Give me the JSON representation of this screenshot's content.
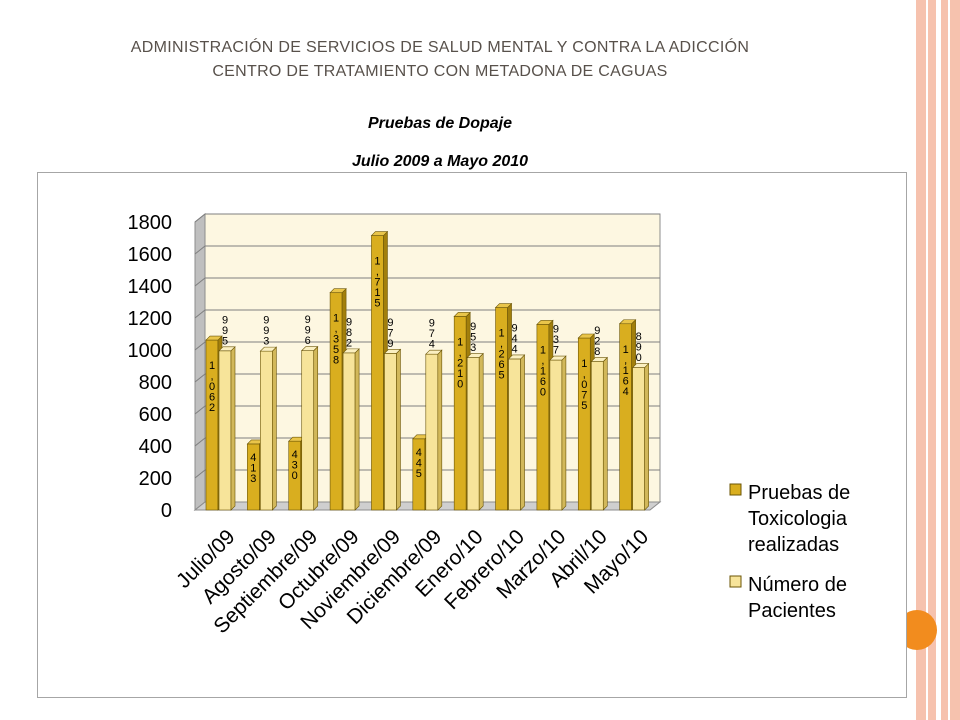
{
  "header": {
    "line1": "ADMINISTRACIÓN DE SERVICIOS DE SALUD MENTAL Y CONTRA LA ADICCIÓN",
    "line2": "CENTRO DE TRATAMIENTO CON METADONA DE CAGUAS",
    "title": "Pruebas de Dopaje",
    "subtitle": "Julio 2009 a Mayo 2010"
  },
  "colors": {
    "series1": "#d9ae1f",
    "series2": "#f7e49a",
    "plot_bg": "#fdf7e1",
    "accent": "#f28c1e"
  },
  "chart_data": {
    "type": "bar",
    "categories": [
      "Julio/09",
      "Agosto/09",
      "Septiembre/09",
      "Octubre/09",
      "Noviembre/09",
      "Diciembre/09",
      "Enero/10",
      "Febrero/10",
      "Marzo/10",
      "Abril/10",
      "Mayo/10"
    ],
    "series": [
      {
        "name": "Pruebas de Toxicologia realizadas",
        "values": [
          1062,
          413,
          430,
          1358,
          1715,
          445,
          1210,
          1265,
          1160,
          1075,
          1164
        ],
        "labels": [
          "1,062",
          "413",
          "430",
          "1,358",
          "1,715",
          "445",
          "1,210",
          "1,265",
          "1,160",
          "1,075",
          "1,164"
        ]
      },
      {
        "name": "Número de Pacientes",
        "values": [
          995,
          993,
          996,
          982,
          979,
          974,
          953,
          944,
          937,
          928,
          890
        ],
        "labels": [
          "995",
          "993",
          "996",
          "982",
          "979",
          "974",
          "953",
          "944",
          "937",
          "928",
          "890"
        ]
      }
    ],
    "legend": [
      {
        "lines": [
          "Pruebas de",
          "Toxicologia",
          "realizadas"
        ]
      },
      {
        "lines": [
          "Número de",
          "Pacientes"
        ]
      }
    ],
    "yticks": [
      "0",
      "200",
      "400",
      "600",
      "800",
      "1000",
      "1200",
      "1400",
      "1600",
      "1800"
    ],
    "ylim": [
      0,
      1800
    ],
    "legend_position": "right",
    "grid": true
  }
}
